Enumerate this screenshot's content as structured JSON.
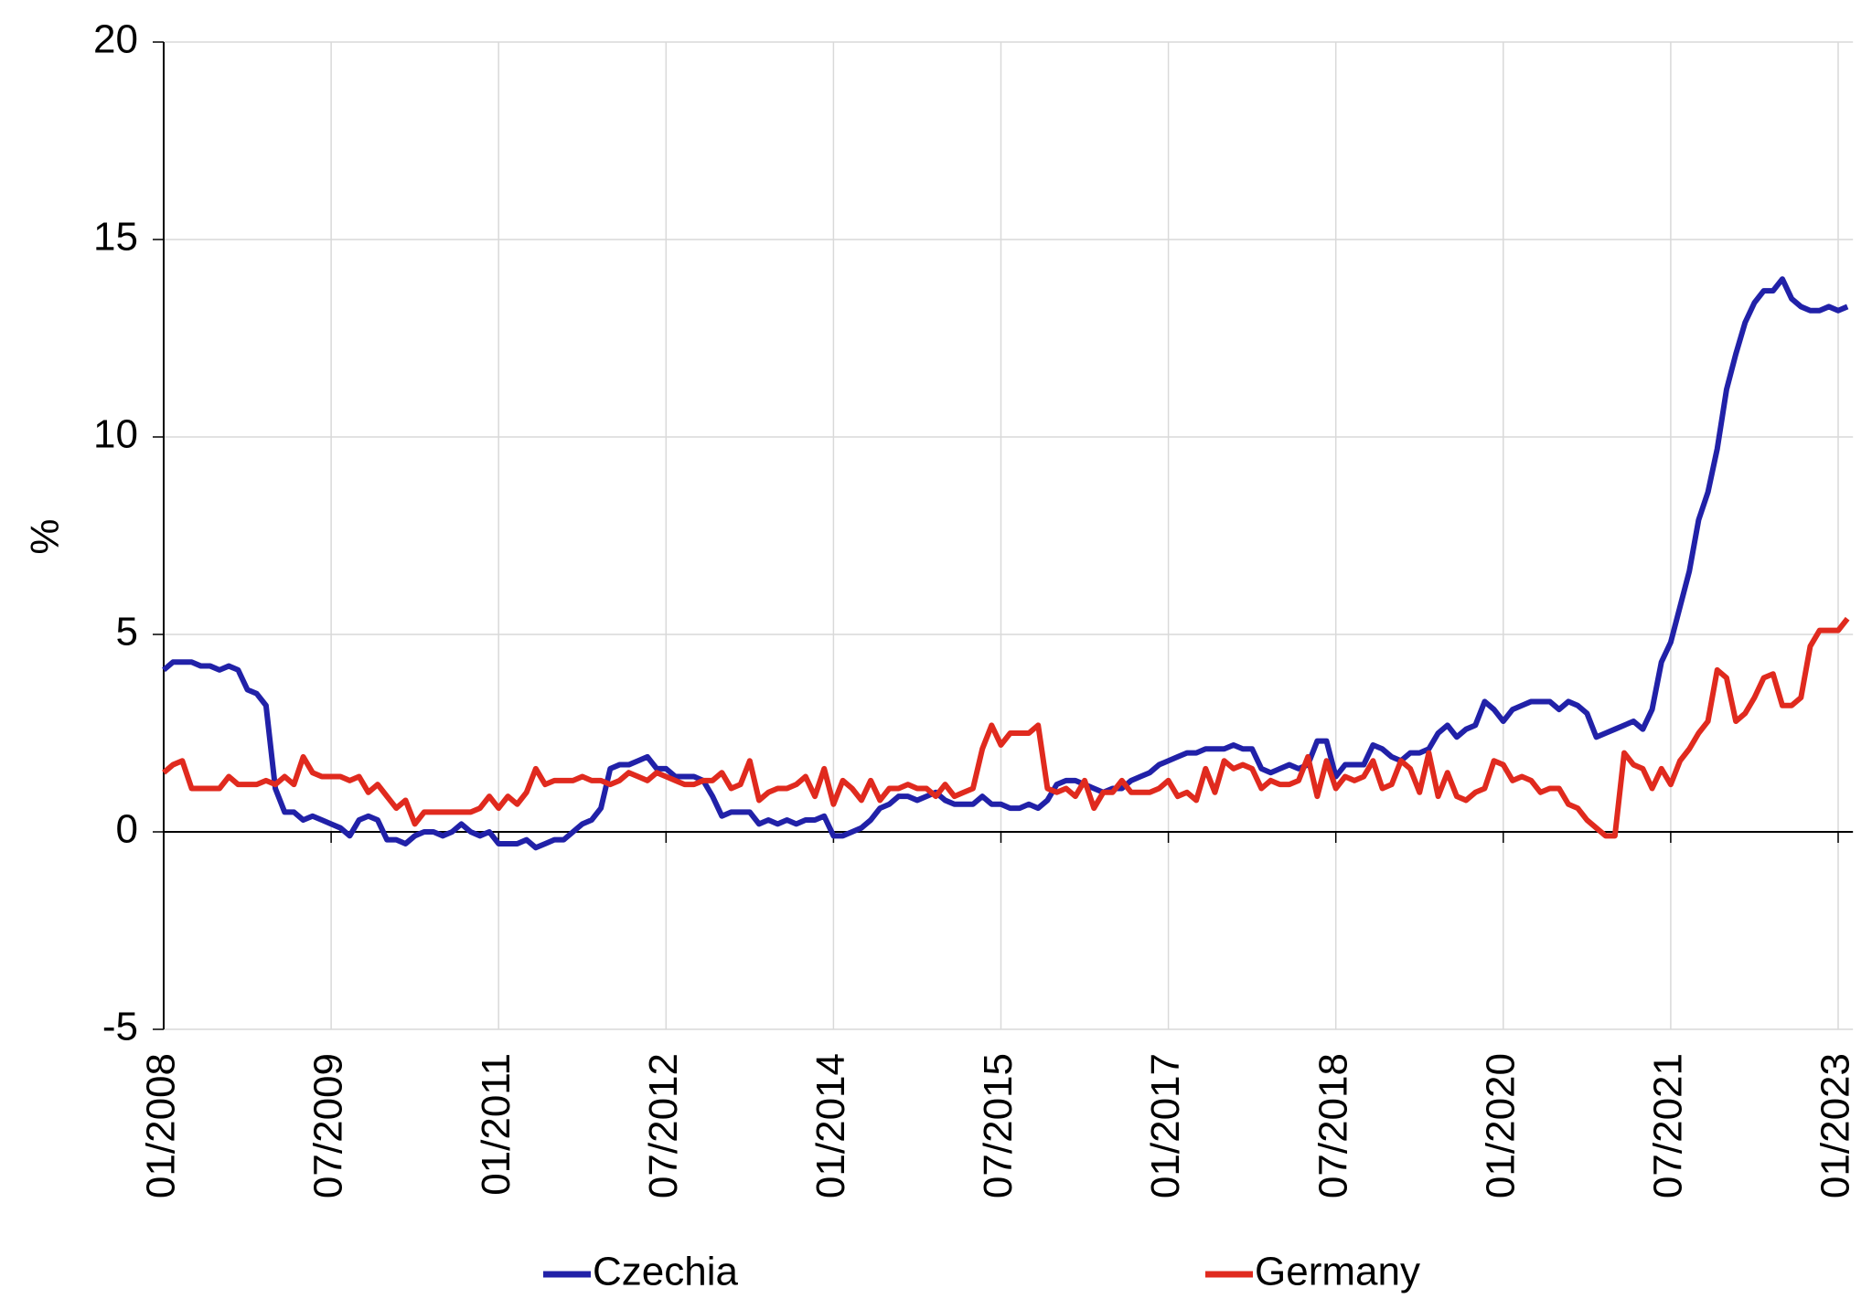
{
  "chart_data": {
    "type": "line",
    "y_label": "%",
    "categories": [
      "01/2008",
      null,
      null,
      null,
      null,
      null,
      null,
      null,
      null,
      null,
      null,
      null,
      null,
      null,
      null,
      null,
      null,
      null,
      "07/2009",
      null,
      null,
      null,
      null,
      null,
      null,
      null,
      null,
      null,
      null,
      null,
      null,
      null,
      null,
      null,
      null,
      null,
      "01/2011",
      null,
      null,
      null,
      null,
      null,
      null,
      null,
      null,
      null,
      null,
      null,
      null,
      null,
      null,
      null,
      null,
      null,
      "07/2012",
      null,
      null,
      null,
      null,
      null,
      null,
      null,
      null,
      null,
      null,
      null,
      null,
      null,
      null,
      null,
      null,
      null,
      "01/2014",
      null,
      null,
      null,
      null,
      null,
      null,
      null,
      null,
      null,
      null,
      null,
      null,
      null,
      null,
      null,
      null,
      null,
      "07/2015",
      null,
      null,
      null,
      null,
      null,
      null,
      null,
      null,
      null,
      null,
      null,
      null,
      null,
      null,
      null,
      null,
      null,
      "01/2017",
      null,
      null,
      null,
      null,
      null,
      null,
      null,
      null,
      null,
      null,
      null,
      null,
      null,
      null,
      null,
      null,
      null,
      "07/2018",
      null,
      null,
      null,
      null,
      null,
      null,
      null,
      null,
      null,
      null,
      null,
      null,
      null,
      null,
      null,
      null,
      null,
      "01/2020",
      null,
      null,
      null,
      null,
      null,
      null,
      null,
      null,
      null,
      null,
      null,
      null,
      null,
      null,
      null,
      null,
      null,
      "07/2021",
      null,
      null,
      null,
      null,
      null,
      null,
      null,
      null,
      null,
      null,
      null,
      null,
      null,
      null,
      null,
      null,
      null,
      "01/2023",
      null
    ],
    "series": [
      {
        "name": "Czechia",
        "color": "#2121a8",
        "values": [
          4.1,
          4.3,
          4.3,
          4.3,
          4.2,
          4.2,
          4.1,
          4.2,
          4.1,
          3.6,
          3.5,
          3.2,
          1.1,
          0.5,
          0.5,
          0.3,
          0.4,
          0.3,
          0.2,
          0.1,
          -0.1,
          0.3,
          0.4,
          0.3,
          -0.2,
          -0.2,
          -0.3,
          -0.1,
          0.0,
          0.0,
          -0.1,
          0.0,
          0.2,
          0.0,
          -0.1,
          0.0,
          -0.3,
          -0.3,
          -0.3,
          -0.2,
          -0.4,
          -0.3,
          -0.2,
          -0.2,
          0.0,
          0.2,
          0.3,
          0.6,
          1.6,
          1.7,
          1.7,
          1.8,
          1.9,
          1.6,
          1.6,
          1.4,
          1.4,
          1.4,
          1.3,
          0.9,
          0.4,
          0.5,
          0.5,
          0.5,
          0.2,
          0.3,
          0.2,
          0.3,
          0.2,
          0.3,
          0.3,
          0.4,
          -0.1,
          -0.1,
          0.0,
          0.1,
          0.3,
          0.6,
          0.7,
          0.9,
          0.9,
          0.8,
          0.9,
          1.0,
          0.8,
          0.7,
          0.7,
          0.7,
          0.9,
          0.7,
          0.7,
          0.6,
          0.6,
          0.7,
          0.6,
          0.8,
          1.2,
          1.3,
          1.3,
          1.2,
          1.1,
          1.0,
          1.1,
          1.1,
          1.3,
          1.4,
          1.5,
          1.7,
          1.8,
          1.9,
          2.0,
          2.0,
          2.1,
          2.1,
          2.1,
          2.2,
          2.1,
          2.1,
          1.6,
          1.5,
          1.6,
          1.7,
          1.6,
          1.7,
          2.3,
          2.3,
          1.4,
          1.7,
          1.7,
          1.7,
          2.2,
          2.1,
          1.9,
          1.8,
          2.0,
          2.0,
          2.1,
          2.5,
          2.7,
          2.4,
          2.6,
          2.7,
          3.3,
          3.1,
          2.8,
          3.1,
          3.2,
          3.3,
          3.3,
          3.3,
          3.1,
          3.3,
          3.2,
          3.0,
          2.4,
          2.5,
          2.6,
          2.7,
          2.8,
          2.6,
          3.1,
          4.3,
          4.8,
          5.7,
          6.6,
          7.9,
          8.6,
          9.7,
          11.2,
          12.1,
          12.9,
          13.4,
          13.7,
          13.7,
          14.0,
          13.5,
          13.3,
          13.2,
          13.2,
          13.3,
          13.2,
          13.3
        ]
      },
      {
        "name": "Germany",
        "color": "#e02a1e",
        "values": [
          1.5,
          1.7,
          1.8,
          1.1,
          1.1,
          1.1,
          1.1,
          1.4,
          1.2,
          1.2,
          1.2,
          1.3,
          1.2,
          1.4,
          1.2,
          1.9,
          1.5,
          1.4,
          1.4,
          1.4,
          1.3,
          1.4,
          1.0,
          1.2,
          0.9,
          0.6,
          0.8,
          0.2,
          0.5,
          0.5,
          0.5,
          0.5,
          0.5,
          0.5,
          0.6,
          0.9,
          0.6,
          0.9,
          0.7,
          1.0,
          1.6,
          1.2,
          1.3,
          1.3,
          1.3,
          1.4,
          1.3,
          1.3,
          1.2,
          1.3,
          1.5,
          1.4,
          1.3,
          1.5,
          1.4,
          1.3,
          1.2,
          1.2,
          1.3,
          1.3,
          1.5,
          1.1,
          1.2,
          1.8,
          0.8,
          1.0,
          1.1,
          1.1,
          1.2,
          1.4,
          0.9,
          1.6,
          0.7,
          1.3,
          1.1,
          0.8,
          1.3,
          0.8,
          1.1,
          1.1,
          1.2,
          1.1,
          1.1,
          0.9,
          1.2,
          0.9,
          1.0,
          1.1,
          2.1,
          2.7,
          2.2,
          2.5,
          2.5,
          2.5,
          2.7,
          1.1,
          1.0,
          1.1,
          0.9,
          1.3,
          0.6,
          1.0,
          1.0,
          1.3,
          1.0,
          1.0,
          1.0,
          1.1,
          1.3,
          0.9,
          1.0,
          0.8,
          1.6,
          1.0,
          1.8,
          1.6,
          1.7,
          1.6,
          1.1,
          1.3,
          1.2,
          1.2,
          1.3,
          1.9,
          0.9,
          1.8,
          1.1,
          1.4,
          1.3,
          1.4,
          1.8,
          1.1,
          1.2,
          1.8,
          1.6,
          1.0,
          2.0,
          0.9,
          1.5,
          0.9,
          0.8,
          1.0,
          1.1,
          1.8,
          1.7,
          1.3,
          1.4,
          1.3,
          1.0,
          1.1,
          1.1,
          0.7,
          0.6,
          0.3,
          0.1,
          -0.1,
          -0.1,
          2.0,
          1.7,
          1.6,
          1.1,
          1.6,
          1.2,
          1.8,
          2.1,
          2.5,
          2.8,
          4.1,
          3.9,
          2.8,
          3.0,
          3.4,
          3.9,
          4.0,
          3.2,
          3.2,
          3.4,
          4.7,
          5.1,
          5.1,
          5.1,
          5.4
        ]
      }
    ],
    "ylim": [
      -5,
      20
    ],
    "yticks": [
      -5,
      0,
      5,
      10,
      15,
      20
    ],
    "grid": true
  }
}
